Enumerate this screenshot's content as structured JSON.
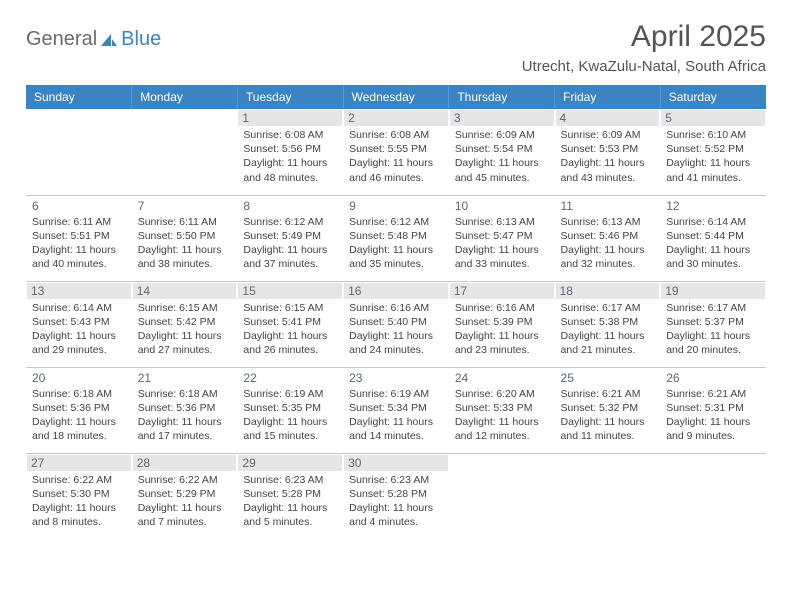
{
  "header": {
    "logo_text_gray": "General",
    "logo_text_blue": "Blue",
    "logo_sail_color": "#3b84c4",
    "month": "April 2025",
    "location": "Utrecht, KwaZulu-Natal, South Africa"
  },
  "calendar": {
    "day_header_bg": "#3b84c4",
    "day_header_fg": "#ffffff",
    "shaded_bg": "#e6e6e6",
    "border_color": "#c8c8c8",
    "columns": [
      "Sunday",
      "Monday",
      "Tuesday",
      "Wednesday",
      "Thursday",
      "Friday",
      "Saturday"
    ],
    "weeks": [
      {
        "shaded": true,
        "days": [
          null,
          null,
          {
            "n": "1",
            "sr": "6:08 AM",
            "ss": "5:56 PM",
            "dl": "11 hours and 48 minutes."
          },
          {
            "n": "2",
            "sr": "6:08 AM",
            "ss": "5:55 PM",
            "dl": "11 hours and 46 minutes."
          },
          {
            "n": "3",
            "sr": "6:09 AM",
            "ss": "5:54 PM",
            "dl": "11 hours and 45 minutes."
          },
          {
            "n": "4",
            "sr": "6:09 AM",
            "ss": "5:53 PM",
            "dl": "11 hours and 43 minutes."
          },
          {
            "n": "5",
            "sr": "6:10 AM",
            "ss": "5:52 PM",
            "dl": "11 hours and 41 minutes."
          }
        ]
      },
      {
        "shaded": false,
        "days": [
          {
            "n": "6",
            "sr": "6:11 AM",
            "ss": "5:51 PM",
            "dl": "11 hours and 40 minutes."
          },
          {
            "n": "7",
            "sr": "6:11 AM",
            "ss": "5:50 PM",
            "dl": "11 hours and 38 minutes."
          },
          {
            "n": "8",
            "sr": "6:12 AM",
            "ss": "5:49 PM",
            "dl": "11 hours and 37 minutes."
          },
          {
            "n": "9",
            "sr": "6:12 AM",
            "ss": "5:48 PM",
            "dl": "11 hours and 35 minutes."
          },
          {
            "n": "10",
            "sr": "6:13 AM",
            "ss": "5:47 PM",
            "dl": "11 hours and 33 minutes."
          },
          {
            "n": "11",
            "sr": "6:13 AM",
            "ss": "5:46 PM",
            "dl": "11 hours and 32 minutes."
          },
          {
            "n": "12",
            "sr": "6:14 AM",
            "ss": "5:44 PM",
            "dl": "11 hours and 30 minutes."
          }
        ]
      },
      {
        "shaded": true,
        "days": [
          {
            "n": "13",
            "sr": "6:14 AM",
            "ss": "5:43 PM",
            "dl": "11 hours and 29 minutes."
          },
          {
            "n": "14",
            "sr": "6:15 AM",
            "ss": "5:42 PM",
            "dl": "11 hours and 27 minutes."
          },
          {
            "n": "15",
            "sr": "6:15 AM",
            "ss": "5:41 PM",
            "dl": "11 hours and 26 minutes."
          },
          {
            "n": "16",
            "sr": "6:16 AM",
            "ss": "5:40 PM",
            "dl": "11 hours and 24 minutes."
          },
          {
            "n": "17",
            "sr": "6:16 AM",
            "ss": "5:39 PM",
            "dl": "11 hours and 23 minutes."
          },
          {
            "n": "18",
            "sr": "6:17 AM",
            "ss": "5:38 PM",
            "dl": "11 hours and 21 minutes."
          },
          {
            "n": "19",
            "sr": "6:17 AM",
            "ss": "5:37 PM",
            "dl": "11 hours and 20 minutes."
          }
        ]
      },
      {
        "shaded": false,
        "days": [
          {
            "n": "20",
            "sr": "6:18 AM",
            "ss": "5:36 PM",
            "dl": "11 hours and 18 minutes."
          },
          {
            "n": "21",
            "sr": "6:18 AM",
            "ss": "5:36 PM",
            "dl": "11 hours and 17 minutes."
          },
          {
            "n": "22",
            "sr": "6:19 AM",
            "ss": "5:35 PM",
            "dl": "11 hours and 15 minutes."
          },
          {
            "n": "23",
            "sr": "6:19 AM",
            "ss": "5:34 PM",
            "dl": "11 hours and 14 minutes."
          },
          {
            "n": "24",
            "sr": "6:20 AM",
            "ss": "5:33 PM",
            "dl": "11 hours and 12 minutes."
          },
          {
            "n": "25",
            "sr": "6:21 AM",
            "ss": "5:32 PM",
            "dl": "11 hours and 11 minutes."
          },
          {
            "n": "26",
            "sr": "6:21 AM",
            "ss": "5:31 PM",
            "dl": "11 hours and 9 minutes."
          }
        ]
      },
      {
        "shaded": true,
        "days": [
          {
            "n": "27",
            "sr": "6:22 AM",
            "ss": "5:30 PM",
            "dl": "11 hours and 8 minutes."
          },
          {
            "n": "28",
            "sr": "6:22 AM",
            "ss": "5:29 PM",
            "dl": "11 hours and 7 minutes."
          },
          {
            "n": "29",
            "sr": "6:23 AM",
            "ss": "5:28 PM",
            "dl": "11 hours and 5 minutes."
          },
          {
            "n": "30",
            "sr": "6:23 AM",
            "ss": "5:28 PM",
            "dl": "11 hours and 4 minutes."
          },
          null,
          null,
          null
        ]
      }
    ],
    "labels": {
      "sunrise": "Sunrise:",
      "sunset": "Sunset:",
      "daylight": "Daylight:"
    }
  }
}
